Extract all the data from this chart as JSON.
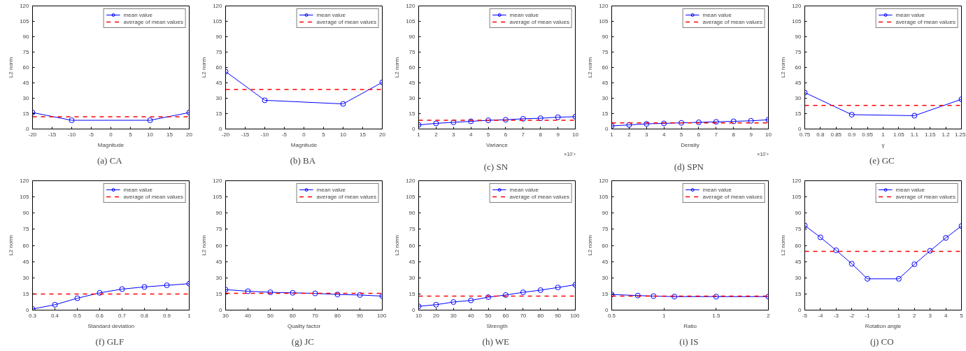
{
  "chart_data": [
    {
      "type": "line",
      "title": "(a)  CA",
      "xlabel": "Magnitude",
      "ylabel": "L2 norm",
      "x": [
        -20,
        -10,
        10,
        20
      ],
      "series": [
        {
          "name": "mean value",
          "color": "#0000ff",
          "values": [
            16,
            8.5,
            8.5,
            16
          ]
        }
      ],
      "ref_lines": [
        {
          "axis": "y",
          "value": 12,
          "label": "average of mean values",
          "color": "#ff0000",
          "line_style": "dashed"
        }
      ],
      "xlim": [
        -20,
        20
      ],
      "xticks": [
        -20,
        -15,
        -10,
        -5,
        0,
        5,
        10,
        15,
        20
      ],
      "ylim": [
        0,
        120
      ],
      "yticks": [
        0,
        15,
        30,
        45,
        60,
        75,
        90,
        105,
        120
      ],
      "marker": "circle",
      "line_style": "solid",
      "legend": "top right",
      "grid": false
    },
    {
      "type": "line",
      "title": "(b)  BA",
      "xlabel": "Magnitude",
      "ylabel": "L2 norm",
      "x": [
        -20,
        -10,
        10,
        20
      ],
      "series": [
        {
          "name": "mean value",
          "color": "#0000ff",
          "values": [
            56,
            28,
            24.5,
            45.5
          ]
        }
      ],
      "ref_lines": [
        {
          "axis": "y",
          "value": 38.5,
          "label": "average of mean values",
          "color": "#ff0000",
          "line_style": "dashed"
        }
      ],
      "xlim": [
        -20,
        20
      ],
      "xticks": [
        -20,
        -15,
        -10,
        -5,
        0,
        5,
        10,
        15,
        20
      ],
      "ylim": [
        0,
        120
      ],
      "yticks": [
        0,
        15,
        30,
        45,
        60,
        75,
        90,
        105,
        120
      ],
      "marker": "circle",
      "line_style": "solid",
      "legend": "top right",
      "grid": false
    },
    {
      "type": "line",
      "title": "(c)  SN",
      "xlabel": "Variance",
      "ylabel": "L2 norm",
      "annotations": [
        "×10⁻³"
      ],
      "x": [
        1,
        2,
        3,
        4,
        5,
        6,
        7,
        8,
        9,
        10
      ],
      "series": [
        {
          "name": "mean value",
          "color": "#0000ff",
          "values": [
            4,
            5.5,
            6.5,
            7.5,
            8.5,
            9,
            10,
            10.5,
            11.5,
            12
          ]
        }
      ],
      "ref_lines": [
        {
          "axis": "y",
          "value": 8.5,
          "label": "average of mean values",
          "color": "#ff0000",
          "line_style": "dashed"
        }
      ],
      "xlim": [
        1,
        10
      ],
      "xticks": [
        1,
        2,
        3,
        4,
        5,
        6,
        7,
        8,
        9,
        10
      ],
      "ylim": [
        0,
        120
      ],
      "yticks": [
        0,
        15,
        30,
        45,
        60,
        75,
        90,
        105,
        120
      ],
      "marker": "circle",
      "line_style": "solid",
      "legend": "top right",
      "grid": false
    },
    {
      "type": "line",
      "title": "(d)  SPN",
      "xlabel": "Density",
      "ylabel": "L2 norm",
      "annotations": [
        "×10⁻³"
      ],
      "x": [
        1,
        2,
        3,
        4,
        5,
        6,
        7,
        8,
        9,
        10
      ],
      "series": [
        {
          "name": "mean value",
          "color": "#0000ff",
          "values": [
            3,
            4,
            5,
            5.5,
            6,
            6.5,
            7,
            7.5,
            8,
            9
          ]
        }
      ],
      "ref_lines": [
        {
          "axis": "y",
          "value": 6,
          "label": "average of mean values",
          "color": "#ff0000",
          "line_style": "dashed"
        }
      ],
      "xlim": [
        1,
        10
      ],
      "xticks": [
        1,
        2,
        3,
        4,
        5,
        6,
        7,
        8,
        9,
        10
      ],
      "ylim": [
        0,
        120
      ],
      "yticks": [
        0,
        15,
        30,
        45,
        60,
        75,
        90,
        105,
        120
      ],
      "marker": "circle",
      "line_style": "solid",
      "legend": "top right",
      "grid": false
    },
    {
      "type": "line",
      "title": "(e)  GC",
      "xlabel": "γ",
      "ylabel": "L2 norm",
      "x": [
        0.75,
        0.9,
        1.1,
        1.25
      ],
      "series": [
        {
          "name": "mean value",
          "color": "#0000ff",
          "values": [
            35.5,
            14,
            13,
            29
          ]
        }
      ],
      "ref_lines": [
        {
          "axis": "y",
          "value": 23,
          "label": "average of mean values",
          "color": "#ff0000",
          "line_style": "dashed"
        }
      ],
      "xlim": [
        0.75,
        1.25
      ],
      "xticks": [
        0.75,
        0.8,
        0.85,
        0.9,
        0.95,
        1,
        1.05,
        1.1,
        1.15,
        1.2,
        1.25
      ],
      "ylim": [
        0,
        120
      ],
      "yticks": [
        0,
        15,
        30,
        45,
        60,
        75,
        90,
        105,
        120
      ],
      "marker": "circle",
      "line_style": "solid",
      "legend": "top right",
      "grid": false
    },
    {
      "type": "line",
      "title": "(f)  GLF",
      "xlabel": "Standard deviation",
      "ylabel": "L2 norm",
      "x": [
        0.3,
        0.4,
        0.5,
        0.6,
        0.7,
        0.8,
        0.9,
        1
      ],
      "series": [
        {
          "name": "mean value",
          "color": "#0000ff",
          "values": [
            1,
            5,
            11,
            16,
            19.5,
            21.5,
            23,
            24.5
          ]
        }
      ],
      "ref_lines": [
        {
          "axis": "y",
          "value": 15,
          "label": "average of mean values",
          "color": "#ff0000",
          "line_style": "dashed"
        }
      ],
      "xlim": [
        0.3,
        1
      ],
      "xticks": [
        0.3,
        0.4,
        0.5,
        0.6,
        0.7,
        0.8,
        0.9,
        1
      ],
      "ylim": [
        0,
        120
      ],
      "yticks": [
        0,
        15,
        30,
        45,
        60,
        75,
        90,
        105,
        120
      ],
      "marker": "circle",
      "line_style": "solid",
      "legend": "top right",
      "grid": false
    },
    {
      "type": "line",
      "title": "(g)  JC",
      "xlabel": "Quality factor",
      "ylabel": "L2 norm",
      "x": [
        30,
        40,
        50,
        60,
        70,
        80,
        90,
        100
      ],
      "series": [
        {
          "name": "mean value",
          "color": "#0000ff",
          "values": [
            19,
            17.5,
            16.5,
            16,
            15.5,
            14.5,
            14,
            13
          ]
        }
      ],
      "ref_lines": [
        {
          "axis": "y",
          "value": 15.5,
          "label": "average of mean values",
          "color": "#ff0000",
          "line_style": "dashed"
        }
      ],
      "xlim": [
        30,
        100
      ],
      "xticks": [
        30,
        40,
        50,
        60,
        70,
        80,
        90,
        100
      ],
      "ylim": [
        0,
        120
      ],
      "yticks": [
        0,
        15,
        30,
        45,
        60,
        75,
        90,
        105,
        120
      ],
      "marker": "circle",
      "line_style": "solid",
      "legend": "top right",
      "grid": false
    },
    {
      "type": "line",
      "title": "(h)  WE",
      "xlabel": "Strength",
      "ylabel": "L2 norm",
      "x": [
        10,
        20,
        30,
        40,
        50,
        60,
        70,
        80,
        90,
        100
      ],
      "series": [
        {
          "name": "mean value",
          "color": "#0000ff",
          "values": [
            3.5,
            5,
            7.5,
            9,
            12,
            14,
            16.5,
            18.5,
            21,
            23.5
          ]
        }
      ],
      "ref_lines": [
        {
          "axis": "y",
          "value": 13,
          "label": "average of mean values",
          "color": "#ff0000",
          "line_style": "dashed"
        }
      ],
      "xlim": [
        10,
        100
      ],
      "xticks": [
        10,
        20,
        30,
        40,
        50,
        60,
        70,
        80,
        90,
        100
      ],
      "ylim": [
        0,
        120
      ],
      "yticks": [
        0,
        15,
        30,
        45,
        60,
        75,
        90,
        105,
        120
      ],
      "marker": "circle",
      "line_style": "solid",
      "legend": "top right",
      "grid": false
    },
    {
      "type": "line",
      "title": "(i)  IS",
      "xlabel": "Ratio",
      "ylabel": "L2 norm",
      "x": [
        0.5,
        0.75,
        0.9,
        1.1,
        1.5,
        2
      ],
      "series": [
        {
          "name": "mean value",
          "color": "#0000ff",
          "values": [
            14.5,
            13.5,
            13,
            12.5,
            12.5,
            12.5
          ]
        }
      ],
      "ref_lines": [
        {
          "axis": "y",
          "value": 13,
          "label": "average of mean values",
          "color": "#ff0000",
          "line_style": "dashed"
        }
      ],
      "xlim": [
        0.5,
        2
      ],
      "xticks": [
        0.5,
        1,
        1.5,
        2
      ],
      "ylim": [
        0,
        120
      ],
      "yticks": [
        0,
        15,
        30,
        45,
        60,
        75,
        90,
        105,
        120
      ],
      "marker": "circle",
      "line_style": "solid",
      "legend": "top right",
      "grid": false
    },
    {
      "type": "line",
      "title": "(j)  CO",
      "xlabel": "Rotation angle",
      "ylabel": "L2 norm",
      "x": [
        -5,
        -4,
        -3,
        -2,
        -1,
        1,
        2,
        3,
        4,
        5
      ],
      "series": [
        {
          "name": "mean value",
          "color": "#0000ff",
          "values": [
            78.5,
            67.5,
            55.5,
            43,
            29,
            29,
            42.5,
            55,
            67,
            78
          ]
        }
      ],
      "ref_lines": [
        {
          "axis": "y",
          "value": 54.5,
          "label": "average of mean values",
          "color": "#ff0000",
          "line_style": "dashed"
        }
      ],
      "xlim": [
        -5,
        5
      ],
      "xticks": [
        -5,
        -4,
        -3,
        -2,
        -1,
        1,
        2,
        3,
        4,
        5
      ],
      "ylim": [
        0,
        120
      ],
      "yticks": [
        0,
        15,
        30,
        45,
        60,
        75,
        90,
        105,
        120
      ],
      "marker": "circle",
      "line_style": "solid",
      "legend": "top right",
      "grid": false
    }
  ]
}
